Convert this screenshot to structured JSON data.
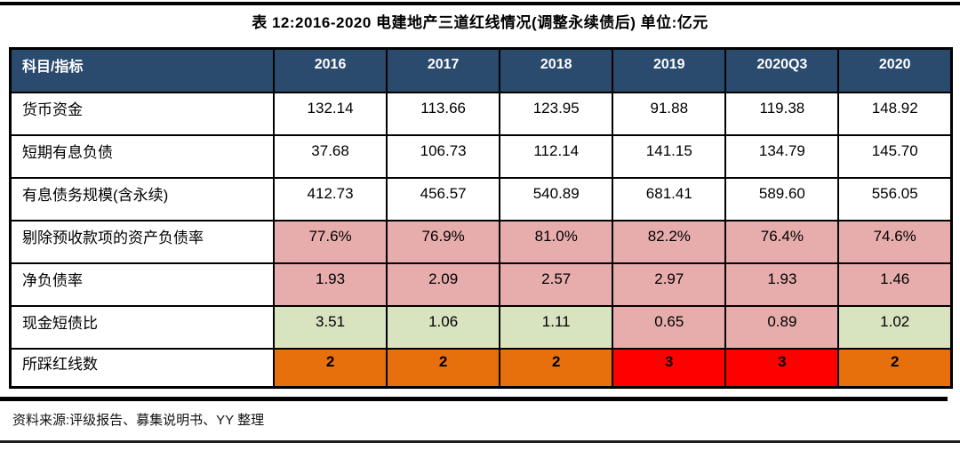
{
  "title": "表 12:2016-2020 电建地产三道红线情况(调整永续债后) 单位:亿元",
  "source_note": "资料来源:评级报告、募集说明书、YY 整理",
  "palette": {
    "header_bg": "#2A4A6E",
    "header_text": "#FFFFFF",
    "white": "#FFFFFF",
    "pink": "#E7ACAC",
    "green": "#D8E3C0",
    "orange": "#E7700D",
    "red": "#FF0000",
    "grid_line": "#000000"
  },
  "table": {
    "columns": [
      "科目/指标",
      "2016",
      "2017",
      "2018",
      "2019",
      "2020Q3",
      "2020"
    ],
    "rows": [
      {
        "label": "货币资金",
        "values": [
          "132.14",
          "113.66",
          "123.95",
          "91.88",
          "119.38",
          "148.92"
        ],
        "colors": [
          "white",
          "white",
          "white",
          "white",
          "white",
          "white"
        ],
        "bold": false
      },
      {
        "label": "短期有息负债",
        "values": [
          "37.68",
          "106.73",
          "112.14",
          "141.15",
          "134.79",
          "145.70"
        ],
        "colors": [
          "white",
          "white",
          "white",
          "white",
          "white",
          "white"
        ],
        "bold": false
      },
      {
        "label": "有息债务规模(含永续)",
        "values": [
          "412.73",
          "456.57",
          "540.89",
          "681.41",
          "589.60",
          "556.05"
        ],
        "colors": [
          "white",
          "white",
          "white",
          "white",
          "white",
          "white"
        ],
        "bold": false
      },
      {
        "label": "剔除预收款项的资产负债率",
        "values": [
          "77.6%",
          "76.9%",
          "81.0%",
          "82.2%",
          "76.4%",
          "74.6%"
        ],
        "colors": [
          "pink",
          "pink",
          "pink",
          "pink",
          "pink",
          "pink"
        ],
        "bold": false
      },
      {
        "label": "净负债率",
        "values": [
          "1.93",
          "2.09",
          "2.57",
          "2.97",
          "1.93",
          "1.46"
        ],
        "colors": [
          "pink",
          "pink",
          "pink",
          "pink",
          "pink",
          "pink"
        ],
        "bold": false
      },
      {
        "label": "现金短债比",
        "values": [
          "3.51",
          "1.06",
          "1.11",
          "0.65",
          "0.89",
          "1.02"
        ],
        "colors": [
          "green",
          "green",
          "green",
          "pink",
          "pink",
          "green"
        ],
        "bold": false
      },
      {
        "label": "所踩红线数",
        "values": [
          "2",
          "2",
          "2",
          "3",
          "3",
          "2"
        ],
        "colors": [
          "orange",
          "orange",
          "orange",
          "red",
          "red",
          "orange"
        ],
        "bold": true
      }
    ]
  }
}
